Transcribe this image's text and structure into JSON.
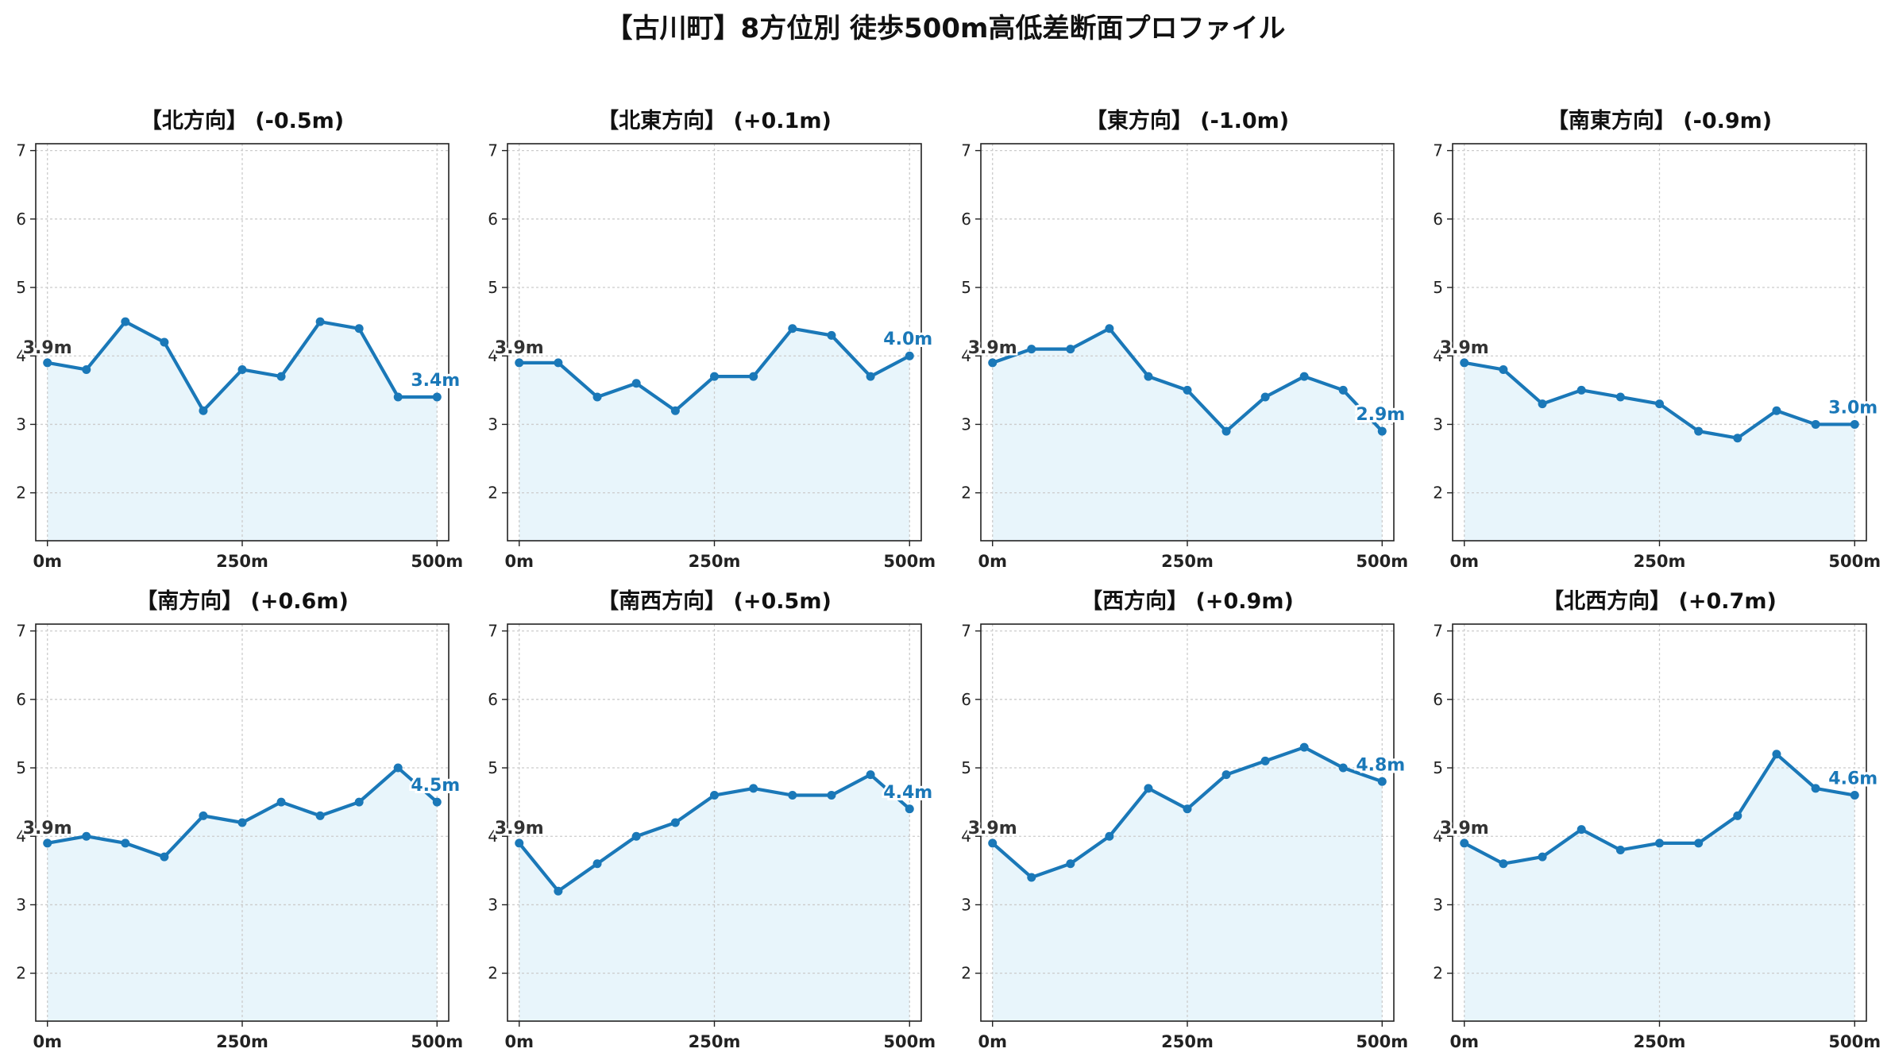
{
  "title": "【古川町】8方位別 徒歩500m高低差断面プロファイル",
  "colors": {
    "line": "#1a78b8",
    "fill": "#e8f5fb",
    "grid": "#cccccc",
    "start_label": "#333333"
  },
  "chart_data": [
    {
      "type": "area",
      "title": "【北方向】 (-0.5m)",
      "x": [
        0,
        50,
        100,
        150,
        200,
        250,
        300,
        350,
        400,
        450,
        500
      ],
      "values": [
        3.9,
        3.8,
        4.5,
        4.2,
        3.2,
        3.8,
        3.7,
        4.5,
        4.4,
        3.4,
        3.4
      ],
      "xticks": [
        "0m",
        "250m",
        "500m"
      ],
      "yticks": [
        "2",
        "3",
        "4",
        "5",
        "6",
        "7"
      ],
      "ylim": [
        1.3,
        7.1
      ],
      "xlim": [
        -15,
        515
      ],
      "grid": true,
      "start_label": "3.9m",
      "end_label": "3.4m"
    },
    {
      "type": "area",
      "title": "【北東方向】 (+0.1m)",
      "x": [
        0,
        50,
        100,
        150,
        200,
        250,
        300,
        350,
        400,
        450,
        500
      ],
      "values": [
        3.9,
        3.9,
        3.4,
        3.6,
        3.2,
        3.7,
        3.7,
        4.4,
        4.3,
        3.7,
        4.0
      ],
      "xticks": [
        "0m",
        "250m",
        "500m"
      ],
      "yticks": [
        "2",
        "3",
        "4",
        "5",
        "6",
        "7"
      ],
      "ylim": [
        1.3,
        7.1
      ],
      "xlim": [
        -15,
        515
      ],
      "grid": true,
      "start_label": "3.9m",
      "end_label": "4.0m"
    },
    {
      "type": "area",
      "title": "【東方向】 (-1.0m)",
      "x": [
        0,
        50,
        100,
        150,
        200,
        250,
        300,
        350,
        400,
        450,
        500
      ],
      "values": [
        3.9,
        4.1,
        4.1,
        4.4,
        3.7,
        3.5,
        2.9,
        3.4,
        3.7,
        3.5,
        2.9
      ],
      "xticks": [
        "0m",
        "250m",
        "500m"
      ],
      "yticks": [
        "2",
        "3",
        "4",
        "5",
        "6",
        "7"
      ],
      "ylim": [
        1.3,
        7.1
      ],
      "xlim": [
        -15,
        515
      ],
      "grid": true,
      "start_label": "3.9m",
      "end_label": "2.9m"
    },
    {
      "type": "area",
      "title": "【南東方向】 (-0.9m)",
      "x": [
        0,
        50,
        100,
        150,
        200,
        250,
        300,
        350,
        400,
        450,
        500
      ],
      "values": [
        3.9,
        3.8,
        3.3,
        3.5,
        3.4,
        3.3,
        2.9,
        2.8,
        3.2,
        3.0,
        3.0
      ],
      "xticks": [
        "0m",
        "250m",
        "500m"
      ],
      "yticks": [
        "2",
        "3",
        "4",
        "5",
        "6",
        "7"
      ],
      "ylim": [
        1.3,
        7.1
      ],
      "xlim": [
        -15,
        515
      ],
      "grid": true,
      "start_label": "3.9m",
      "end_label": "3.0m"
    },
    {
      "type": "area",
      "title": "【南方向】 (+0.6m)",
      "x": [
        0,
        50,
        100,
        150,
        200,
        250,
        300,
        350,
        400,
        450,
        500
      ],
      "values": [
        3.9,
        4.0,
        3.9,
        3.7,
        4.3,
        4.2,
        4.5,
        4.3,
        4.5,
        5.0,
        4.5
      ],
      "xticks": [
        "0m",
        "250m",
        "500m"
      ],
      "yticks": [
        "2",
        "3",
        "4",
        "5",
        "6",
        "7"
      ],
      "ylim": [
        1.3,
        7.1
      ],
      "xlim": [
        -15,
        515
      ],
      "grid": true,
      "start_label": "3.9m",
      "end_label": "4.5m"
    },
    {
      "type": "area",
      "title": "【南西方向】 (+0.5m)",
      "x": [
        0,
        50,
        100,
        150,
        200,
        250,
        300,
        350,
        400,
        450,
        500
      ],
      "values": [
        3.9,
        3.2,
        3.6,
        4.0,
        4.2,
        4.6,
        4.7,
        4.6,
        4.6,
        4.9,
        4.4
      ],
      "xticks": [
        "0m",
        "250m",
        "500m"
      ],
      "yticks": [
        "2",
        "3",
        "4",
        "5",
        "6",
        "7"
      ],
      "ylim": [
        1.3,
        7.1
      ],
      "xlim": [
        -15,
        515
      ],
      "grid": true,
      "start_label": "3.9m",
      "end_label": "4.4m"
    },
    {
      "type": "area",
      "title": "【西方向】 (+0.9m)",
      "x": [
        0,
        50,
        100,
        150,
        200,
        250,
        300,
        350,
        400,
        450,
        500
      ],
      "values": [
        3.9,
        3.4,
        3.6,
        4.0,
        4.7,
        4.4,
        4.9,
        5.1,
        5.3,
        5.0,
        4.8
      ],
      "xticks": [
        "0m",
        "250m",
        "500m"
      ],
      "yticks": [
        "2",
        "3",
        "4",
        "5",
        "6",
        "7"
      ],
      "ylim": [
        1.3,
        7.1
      ],
      "xlim": [
        -15,
        515
      ],
      "grid": true,
      "start_label": "3.9m",
      "end_label": "4.8m"
    },
    {
      "type": "area",
      "title": "【北西方向】 (+0.7m)",
      "x": [
        0,
        50,
        100,
        150,
        200,
        250,
        300,
        350,
        400,
        450,
        500
      ],
      "values": [
        3.9,
        3.6,
        3.7,
        4.1,
        3.8,
        3.9,
        3.9,
        4.3,
        5.2,
        4.7,
        4.6
      ],
      "xticks": [
        "0m",
        "250m",
        "500m"
      ],
      "yticks": [
        "2",
        "3",
        "4",
        "5",
        "6",
        "7"
      ],
      "ylim": [
        1.3,
        7.1
      ],
      "xlim": [
        -15,
        515
      ],
      "grid": true,
      "start_label": "3.9m",
      "end_label": "4.6m"
    }
  ]
}
